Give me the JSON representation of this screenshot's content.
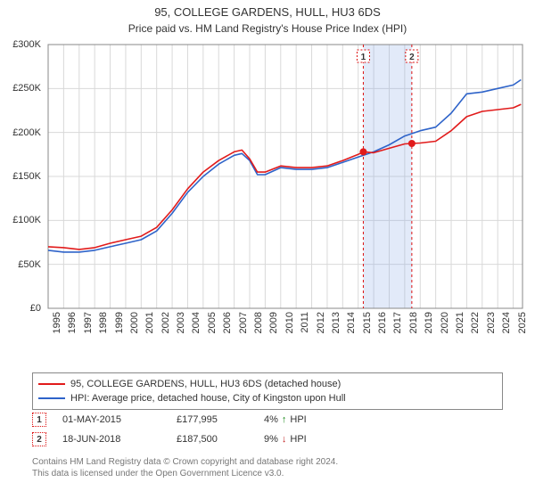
{
  "title": "95, COLLEGE GARDENS, HULL, HU3 6DS",
  "subtitle": "Price paid vs. HM Land Registry's House Price Index (HPI)",
  "chart": {
    "type": "line",
    "background_color": "#ffffff",
    "plot_border_color": "#888888",
    "grid_color": "#d9d9d9",
    "ylabel_prefix": "£",
    "ylim": [
      0,
      300000
    ],
    "yticks": [
      0,
      50000,
      100000,
      150000,
      200000,
      250000,
      300000
    ],
    "ytick_labels": [
      "£0",
      "£50K",
      "£100K",
      "£150K",
      "£200K",
      "£250K",
      "£300K"
    ],
    "xlim": [
      1995,
      2025.6
    ],
    "xticks": [
      1995,
      1996,
      1997,
      1998,
      1999,
      2000,
      2001,
      2002,
      2003,
      2004,
      2005,
      2006,
      2007,
      2008,
      2009,
      2010,
      2011,
      2012,
      2013,
      2014,
      2015,
      2016,
      2017,
      2018,
      2019,
      2020,
      2021,
      2022,
      2023,
      2024,
      2025
    ],
    "label_fontsize": 11,
    "line_width": 1.6,
    "series": [
      {
        "id": "subject",
        "name": "95, COLLEGE GARDENS, HULL, HU3 6DS (detached house)",
        "color": "#e11b1b",
        "x": [
          1995,
          1996,
          1997,
          1998,
          1999,
          2000,
          2001,
          2002,
          2003,
          2004,
          2005,
          2006,
          2007,
          2007.5,
          2008,
          2008.5,
          2009,
          2010,
          2011,
          2012,
          2013,
          2014,
          2015,
          2015.33,
          2016,
          2017,
          2018,
          2018.46,
          2019,
          2020,
          2021,
          2022,
          2023,
          2024,
          2025,
          2025.5
        ],
        "y": [
          70000,
          69000,
          67000,
          69000,
          74000,
          78000,
          82000,
          92000,
          112000,
          136000,
          155000,
          168000,
          178000,
          180000,
          170000,
          155000,
          155000,
          162000,
          160000,
          160000,
          162000,
          168000,
          175000,
          177995,
          177000,
          182000,
          187000,
          187500,
          188000,
          190000,
          202000,
          218000,
          224000,
          226000,
          228000,
          232000
        ]
      },
      {
        "id": "hpi",
        "name": "HPI: Average price, detached house, City of Kingston upon Hull",
        "color": "#2e63c9",
        "x": [
          1995,
          1996,
          1997,
          1998,
          1999,
          2000,
          2001,
          2002,
          2003,
          2004,
          2005,
          2006,
          2007,
          2007.5,
          2008,
          2008.5,
          2009,
          2010,
          2011,
          2012,
          2013,
          2014,
          2015,
          2016,
          2017,
          2018,
          2019,
          2020,
          2021,
          2022,
          2023,
          2024,
          2025,
          2025.5
        ],
        "y": [
          66000,
          64000,
          64000,
          66000,
          70000,
          74000,
          78000,
          88000,
          108000,
          132000,
          150000,
          164000,
          174000,
          176000,
          168000,
          152000,
          152000,
          160000,
          158000,
          158000,
          160000,
          166000,
          172000,
          178000,
          186000,
          196000,
          202000,
          206000,
          222000,
          244000,
          246000,
          250000,
          254000,
          260000
        ]
      }
    ],
    "sale_markers": [
      {
        "ref": "1",
        "x": 2015.33,
        "y": 177995,
        "dash_color": "#d11",
        "band_color": "rgba(140,170,230,0.25)",
        "band_x": [
          2015.33,
          2018.46
        ]
      },
      {
        "ref": "2",
        "x": 2018.46,
        "y": 187500,
        "dash_color": "#d11"
      }
    ],
    "marker_dot_color": "#e11b1b",
    "marker_dot_radius": 4,
    "dashed_line_dash": "3,3"
  },
  "legend": {
    "items": [
      {
        "color": "#e11b1b",
        "label": "95, COLLEGE GARDENS, HULL, HU3 6DS (detached house)"
      },
      {
        "color": "#2e63c9",
        "label": "HPI: Average price, detached house, City of Kingston upon Hull"
      }
    ]
  },
  "sales": [
    {
      "ref": "1",
      "date": "01-MAY-2015",
      "price": "£177,995",
      "diff": "4%",
      "arrow": "↑",
      "arrow_color": "#1a8a1a",
      "suffix": "HPI"
    },
    {
      "ref": "2",
      "date": "18-JUN-2018",
      "price": "£187,500",
      "diff": "9%",
      "arrow": "↓",
      "arrow_color": "#c02020",
      "suffix": "HPI"
    }
  ],
  "footnote_line1": "Contains HM Land Registry data © Crown copyright and database right 2024.",
  "footnote_line2": "This data is licensed under the Open Government Licence v3.0."
}
